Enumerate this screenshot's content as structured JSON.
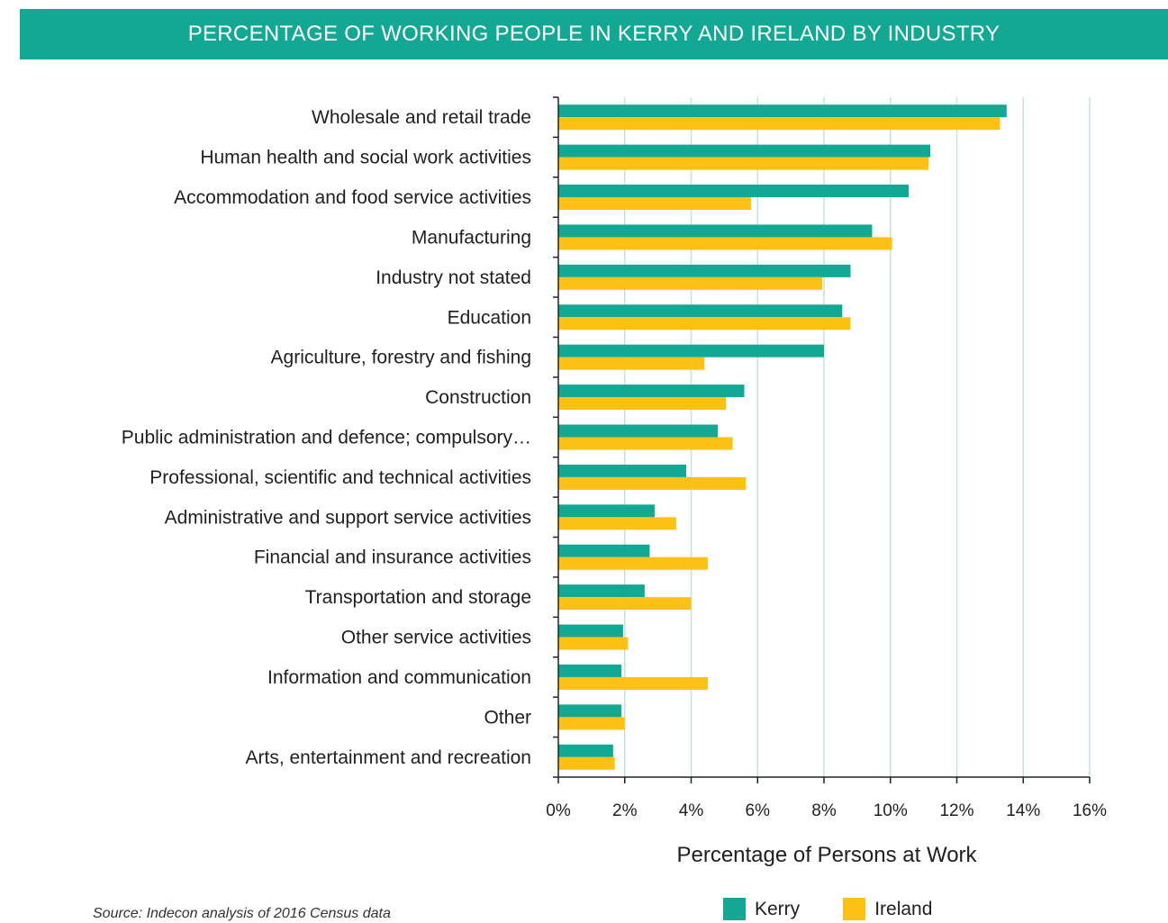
{
  "page": {
    "title": "PERCENTAGE OF WORKING PEOPLE IN KERRY AND IRELAND BY INDUSTRY",
    "source": "Source: Indecon analysis of 2016 Census data"
  },
  "colors": {
    "banner": "#12a894",
    "kerry": "#12a894",
    "ireland": "#fdc116",
    "grid": "#bfe6dc",
    "axis": "#222222"
  },
  "chart_data": {
    "type": "bar",
    "orientation": "horizontal",
    "title": "PERCENTAGE OF WORKING PEOPLE IN KERRY AND IRELAND BY INDUSTRY",
    "xlabel": "Percentage of Persons at Work",
    "ylabel": "",
    "xlim": [
      0,
      16
    ],
    "x_ticks": [
      "0%",
      "2%",
      "4%",
      "6%",
      "8%",
      "10%",
      "12%",
      "14%",
      "16%"
    ],
    "grid": true,
    "legend_position": "bottom",
    "categories": [
      "Wholesale and retail trade",
      "Human health and social work activities",
      "Accommodation and food service activities",
      "Manufacturing",
      "Industry not stated",
      "Education",
      "Agriculture, forestry and fishing",
      "Construction",
      "Public administration and defence; compulsory…",
      "Professional, scientific and technical activities",
      "Administrative and support service activities",
      "Financial and insurance activities",
      "Transportation and storage",
      "Other service activities",
      "Information and communication",
      "Other",
      "Arts, entertainment and recreation"
    ],
    "series": [
      {
        "name": "Kerry",
        "values": [
          13.5,
          11.2,
          10.55,
          9.45,
          8.8,
          8.55,
          8.0,
          5.6,
          4.8,
          3.85,
          2.9,
          2.75,
          2.6,
          1.95,
          1.9,
          1.9,
          1.65
        ]
      },
      {
        "name": "Ireland",
        "values": [
          13.3,
          11.15,
          5.8,
          10.05,
          7.95,
          8.8,
          4.4,
          5.05,
          5.25,
          5.65,
          3.55,
          4.5,
          4.0,
          2.1,
          4.5,
          2.0,
          1.7
        ]
      }
    ]
  }
}
